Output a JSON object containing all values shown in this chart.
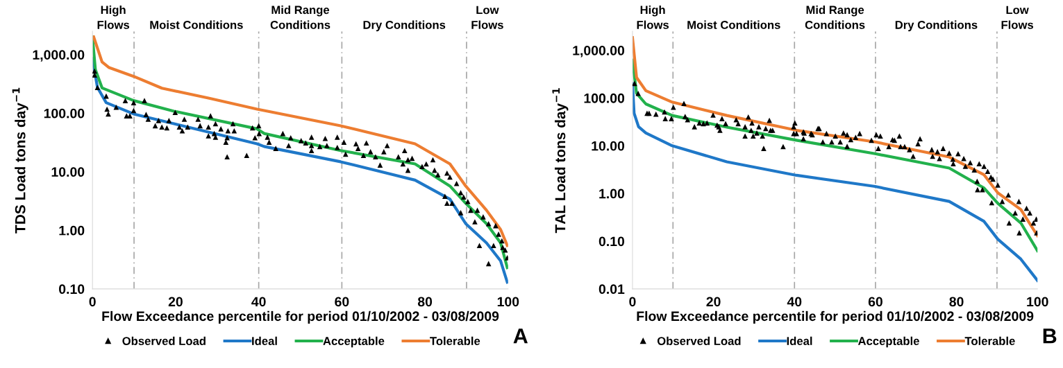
{
  "chart_data": [
    {
      "type": "line",
      "xlabel": "Flow Exceedance percentile for period 01/10/2002 - 03/08/2009",
      "ylabel": "TDS Load tons day$^{−1}$",
      "log": "y",
      "xlim": [
        0,
        100
      ],
      "xticks": [
        0,
        20,
        40,
        60,
        80,
        100
      ],
      "ylim": [
        0.1,
        2500
      ],
      "yticks": [
        {
          "value": 0.1,
          "label": "0.10"
        },
        {
          "value": 1,
          "label": "1.00"
        },
        {
          "value": 10,
          "label": "10.00"
        },
        {
          "value": 100,
          "label": "100.00"
        },
        {
          "value": 1000,
          "label": "1,000.00"
        }
      ],
      "grid": false,
      "legend": "bottom",
      "ref_lines": [
        {
          "axis": "x",
          "value": 10,
          "color": "#a6a6a6",
          "line_style": "dashed"
        },
        {
          "axis": "x",
          "value": 40,
          "color": "#a6a6a6",
          "line_style": "dashed"
        },
        {
          "axis": "x",
          "value": 60,
          "color": "#a6a6a6",
          "line_style": "dashed"
        },
        {
          "axis": "x",
          "value": 90,
          "color": "#a6a6a6",
          "line_style": "dashed"
        }
      ],
      "annotations": [
        "High\nFlows",
        "Moist Conditions",
        "Mid Range\nConditions",
        "Dry Conditions",
        "Low\nFlows",
        "A"
      ],
      "series": [
        {
          "name": "Observed Load",
          "type": "scatter",
          "marker": "triangle",
          "color": "#000000",
          "x": [
            0.5,
            0.5,
            1.2,
            3.3,
            3.5,
            3.8,
            5.7,
            7.9,
            8.2,
            9.0,
            9.9,
            9.9,
            12.5,
            12.9,
            13.4,
            15.1,
            15.9,
            16.7,
            17.9,
            18.4,
            19.9,
            20.9,
            21.6,
            22.1,
            22.9,
            25.4,
            25.9,
            27.9,
            28.4,
            27.9,
            29.3,
            29.6,
            29.6,
            30.9,
            32.4,
            32.1,
            32.6,
            33.8,
            34.1,
            32.4,
            37.1,
            38.5,
            39.1,
            40.0,
            40.1,
            42.1,
            42.5,
            44.1,
            45.8,
            47.7,
            47.2,
            50.2,
            51.3,
            52.7,
            52.7,
            52.7,
            54.7,
            56.0,
            56.4,
            58.9,
            58.9,
            60.5,
            60.9,
            63.4,
            63.9,
            65.9,
            65.2,
            66.9,
            68.1,
            69.2,
            70.1,
            70.9,
            73.6,
            75.1,
            74.7,
            75.9,
            76.9,
            75.9,
            79.3,
            80.3,
            81.9,
            82.3,
            83.1,
            85.3,
            84.8,
            86.0,
            85.3,
            86.5,
            87.6,
            88.6,
            88.6,
            89.3,
            90.3,
            91.0,
            92.6,
            92.0,
            94.0,
            95.3,
            93.1,
            95.3,
            96.5,
            97.0,
            97.7,
            98.5,
            99.3,
            99.8,
            98.7
          ],
          "values": [
            524,
            448,
            274,
            196,
            117,
            97,
            126,
            164,
            90,
            90,
            151,
            111,
            164,
            95,
            79,
            61,
            75,
            58,
            56,
            75,
            103,
            58,
            50,
            79,
            58,
            79,
            61,
            58,
            90,
            41,
            45,
            66,
            39,
            54,
            38,
            32,
            50,
            66,
            50,
            18,
            19,
            56,
            38,
            61,
            45,
            39,
            32,
            25,
            45,
            38,
            28,
            34,
            31,
            39,
            28,
            23,
            27,
            37,
            28,
            39,
            26,
            32,
            20,
            30,
            25,
            31,
            19,
            22,
            18,
            13,
            22,
            28,
            18,
            23,
            13.6,
            16,
            17,
            10.6,
            12.3,
            13.6,
            16,
            10.6,
            8.9,
            9.5,
            3.8,
            8.1,
            2.9,
            2.9,
            6.3,
            4.4,
            2.0,
            3.7,
            3.1,
            2.2,
            2.2,
            1.4,
            1.7,
            1.3,
            0.55,
            0.27,
            0.55,
            1.2,
            0.86,
            0.66,
            0.46,
            0.34,
            0.51
          ]
        },
        {
          "name": "Ideal",
          "color": "#1f78c8",
          "x": [
            0,
            1.2,
            3.3,
            9.9,
            19.6,
            39.6,
            41.3,
            59.7,
            77.6,
            86,
            89.8,
            94.8,
            98.2,
            99.8
          ],
          "values": [
            857,
            274,
            151,
            97,
            66,
            30,
            27,
            14.8,
            7.2,
            3.4,
            1.3,
            0.61,
            0.3,
            0.13
          ]
        },
        {
          "name": "Acceptable",
          "color": "#22b14c",
          "x": [
            0,
            0.7,
            2.3,
            9.9,
            19.6,
            39.6,
            41.3,
            59.7,
            77.6,
            86,
            89.8,
            94.8,
            98.2,
            99.8
          ],
          "values": [
            2000,
            552,
            270,
            164,
            108,
            54,
            45,
            23,
            13.6,
            5.7,
            2.9,
            1.3,
            0.61,
            0.23
          ]
        },
        {
          "name": "Tolerable",
          "color": "#ed7d31",
          "x": [
            0.3,
            2.3,
            4,
            9.9,
            16.7,
            27.9,
            39.6,
            41.3,
            59.7,
            77.6,
            86,
            89.8,
            94.8,
            98.2,
            99.8
          ],
          "values": [
            2000,
            750,
            600,
            425,
            267,
            181,
            117,
            111,
            61,
            30,
            13.6,
            5.7,
            2.2,
            1.03,
            0.55
          ]
        }
      ]
    },
    {
      "type": "line",
      "xlabel": "Flow Exceedance percentile for period 01/10/2002 - 03/08/2009",
      "ylabel": "TAL Load tons day$^{−1}$",
      "log": "y",
      "xlim": [
        0,
        100
      ],
      "xticks": [
        0,
        20,
        40,
        60,
        80,
        100
      ],
      "ylim": [
        0.01,
        2500
      ],
      "yticks": [
        {
          "value": 0.01,
          "label": "0.01"
        },
        {
          "value": 0.1,
          "label": "0.10"
        },
        {
          "value": 1,
          "label": "1.00"
        },
        {
          "value": 10,
          "label": "10.00"
        },
        {
          "value": 100,
          "label": "100.00"
        },
        {
          "value": 1000,
          "label": "1,000.00"
        }
      ],
      "grid": false,
      "legend": "bottom",
      "ref_lines": [
        {
          "axis": "x",
          "value": 10,
          "color": "#a6a6a6",
          "line_style": "dashed"
        },
        {
          "axis": "x",
          "value": 40,
          "color": "#a6a6a6",
          "line_style": "dashed"
        },
        {
          "axis": "x",
          "value": 60,
          "color": "#a6a6a6",
          "line_style": "dashed"
        },
        {
          "axis": "x",
          "value": 90,
          "color": "#a6a6a6",
          "line_style": "dashed"
        }
      ],
      "annotations": [
        "High\nFlows",
        "Moist Conditions",
        "Mid Range\nConditions",
        "Dry Conditions",
        "Low\nFlows",
        "B"
      ],
      "series": [
        {
          "name": "Observed Load",
          "type": "scatter",
          "marker": "triangle",
          "color": "#000000",
          "x": [
            0.5,
            1.4,
            3.6,
            4.1,
            5.8,
            7.9,
            8.1,
            9.6,
            10.1,
            12.7,
            13.0,
            13.6,
            15.3,
            16.5,
            17.5,
            18.4,
            19.9,
            20.9,
            21.3,
            21.6,
            22.1,
            23.0,
            25.6,
            26.1,
            27.8,
            27.8,
            28.6,
            29.3,
            29.5,
            29.8,
            30.7,
            31.2,
            32.1,
            32.4,
            32.9,
            33.8,
            34.1,
            34.6,
            37.2,
            39.8,
            40.1,
            39.8,
            40.5,
            42.2,
            42.2,
            44.1,
            45.8,
            42.4,
            44.4,
            46.1,
            47.9,
            47.0,
            49.2,
            50.1,
            51.3,
            52.1,
            53.0,
            53.0,
            53.9,
            55.1,
            56.1,
            59.0,
            60.2,
            60.7,
            61.2,
            63.3,
            64.2,
            64.7,
            65.9,
            66.2,
            67.2,
            68.4,
            69.3,
            70.5,
            71.0,
            73.9,
            74.1,
            75.3,
            75.8,
            76.7,
            78.2,
            79.1,
            79.2,
            80.4,
            81.8,
            82.2,
            83.4,
            84.4,
            85.1,
            85.2,
            86.4,
            85.6,
            86.8,
            87.7,
            88.5,
            89.0,
            88.7,
            90.2,
            91.3,
            92.8,
            93.0,
            94.5,
            95.4,
            95.5,
            96.4,
            97.3,
            98.1,
            99.0,
            99.8,
            99.7
          ],
          "values": [
            202,
            125,
            48,
            48,
            46,
            51,
            37,
            37,
            64,
            77,
            41,
            35,
            25,
            30,
            29,
            30,
            44,
            27,
            25,
            21,
            37,
            29,
            35,
            29,
            25,
            16,
            40,
            21,
            30,
            16,
            18.5,
            25,
            16,
            8.8,
            23,
            34,
            21,
            21,
            9.6,
            25,
            30,
            18,
            18,
            19.5,
            14,
            18,
            23,
            18.5,
            17,
            23,
            18,
            12,
            12,
            16,
            12,
            18.5,
            17,
            9.7,
            13.4,
            15,
            18,
            13,
            17,
            8.8,
            16,
            9.6,
            13.4,
            13,
            16,
            9.6,
            9.6,
            8.3,
            6.0,
            11,
            14,
            8.3,
            6.0,
            7.5,
            5.4,
            8.8,
            7.0,
            5.2,
            4.2,
            6.8,
            5.4,
            3.7,
            4.4,
            3.1,
            1.8,
            1.2,
            1.2,
            4.2,
            3.7,
            2.9,
            2.2,
            2.0,
            0.64,
            1.5,
            0.68,
            0.93,
            0.24,
            0.39,
            0.68,
            0.15,
            0.29,
            0.49,
            0.39,
            0.24,
            0.15,
            0.29
          ]
        },
        {
          "name": "Ideal",
          "color": "#1f78c8",
          "x": [
            0,
            0.4,
            1.5,
            3.3,
            9.8,
            23.3,
            40.5,
            59.9,
            78.2,
            86.8,
            90.2,
            95.9,
            100
          ],
          "values": [
            200,
            48,
            25,
            18.5,
            10,
            4.6,
            2.4,
            1.4,
            0.68,
            0.26,
            0.11,
            0.042,
            0.015
          ]
        },
        {
          "name": "Acceptable",
          "color": "#22b14c",
          "x": [
            0,
            1.0,
            3.3,
            9.8,
            23.3,
            40.5,
            59.9,
            78.2,
            86.8,
            90.2,
            95.9,
            100
          ],
          "values": [
            620,
            125,
            75,
            43,
            24.5,
            13,
            6.8,
            3.4,
            1.3,
            0.62,
            0.24,
            0.063
          ]
        },
        {
          "name": "Tolerable",
          "color": "#ed7d31",
          "x": [
            0,
            1.0,
            3.3,
            9.8,
            23.3,
            40.5,
            59.9,
            78.2,
            86.8,
            90.2,
            95.9,
            100
          ],
          "values": [
            1840,
            270,
            142,
            82,
            43,
            21,
            12,
            5.8,
            2.46,
            1.03,
            0.46,
            0.13
          ]
        }
      ]
    }
  ]
}
